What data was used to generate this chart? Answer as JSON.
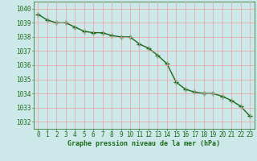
{
  "x": [
    0,
    1,
    2,
    3,
    4,
    5,
    6,
    7,
    8,
    9,
    10,
    11,
    12,
    13,
    14,
    15,
    16,
    17,
    18,
    19,
    20,
    21,
    22,
    23
  ],
  "y": [
    1039.6,
    1039.2,
    1039.0,
    1039.0,
    1038.7,
    1038.4,
    1038.3,
    1038.3,
    1038.1,
    1038.0,
    1038.0,
    1037.5,
    1037.2,
    1036.7,
    1036.1,
    1034.8,
    1034.3,
    1034.1,
    1034.0,
    1034.0,
    1033.8,
    1033.5,
    1033.1,
    1032.4
  ],
  "line_color": "#1a6b1a",
  "marker": "+",
  "marker_size": 4,
  "marker_color": "#1a6b1a",
  "line_width": 1.0,
  "bg_color": "#cce8e8",
  "grid_color": "#e8a0a0",
  "xlabel": "Graphe pression niveau de la mer (hPa)",
  "xlabel_color": "#1a6b1a",
  "xlabel_fontsize": 6.0,
  "tick_color": "#1a6b1a",
  "tick_fontsize": 5.5,
  "ylim": [
    1031.5,
    1040.5
  ],
  "yticks": [
    1032,
    1033,
    1034,
    1035,
    1036,
    1037,
    1038,
    1039,
    1040
  ],
  "xlim": [
    -0.5,
    23.5
  ],
  "xticks": [
    0,
    1,
    2,
    3,
    4,
    5,
    6,
    7,
    8,
    9,
    10,
    11,
    12,
    13,
    14,
    15,
    16,
    17,
    18,
    19,
    20,
    21,
    22,
    23
  ]
}
